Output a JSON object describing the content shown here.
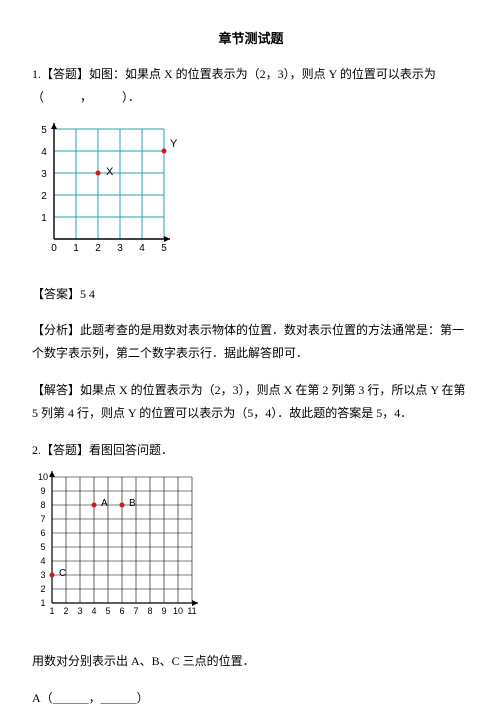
{
  "title": "章节测试题",
  "q1": {
    "prompt": "1.【答题】如图：如果点 X 的位置表示为（2，3），则点 Y 的位置可以表示为（　　　，　　　）．",
    "answer": "【答案】5 4",
    "analysis": "【分析】此题考查的是用数对表示物体的位置．数对表示位置的方法通常是：第一个数字表示列，第二个数字表示行．据此解答即可．",
    "solution": "【解答】如果点 X 的位置表示为（2，3），则点 X 在第 2 列第 3 行，所以点 Y 在第 5 列第 4 行，则点 Y 的位置可以表示为（5，4）．故此题的答案是 5，4．",
    "chart": {
      "x_labels": [
        "0",
        "1",
        "2",
        "3",
        "4",
        "5"
      ],
      "y_labels": [
        "1",
        "2",
        "3",
        "4",
        "5"
      ],
      "grid_color": "#2aa0b8",
      "axis_color": "#000000",
      "point_color": "#d01818",
      "label_fontsize": 10,
      "X": {
        "col": 2,
        "row": 3,
        "label": "X"
      },
      "Y": {
        "col": 5,
        "row": 4,
        "label": "Y"
      }
    }
  },
  "q2": {
    "prompt": "2.【答题】看图回答问题．",
    "task": "用数对分别表示出 A、B、C 三点的位置．",
    "answerA": "A（＿＿＿，＿＿＿）",
    "chart": {
      "x_labels": [
        "1",
        "2",
        "3",
        "4",
        "5",
        "6",
        "7",
        "8",
        "9",
        "10",
        "11"
      ],
      "y_labels": [
        "1",
        "2",
        "3",
        "4",
        "5",
        "6",
        "7",
        "8",
        "9",
        "10"
      ],
      "grid_color": "#000000",
      "axis_color": "#000000",
      "point_color": "#d01818",
      "label_fontsize": 9,
      "A": {
        "col": 4,
        "row": 8,
        "label": "A"
      },
      "B": {
        "col": 6,
        "row": 8,
        "label": "B"
      },
      "C": {
        "col": 1,
        "row": 3,
        "label": "C"
      }
    }
  }
}
